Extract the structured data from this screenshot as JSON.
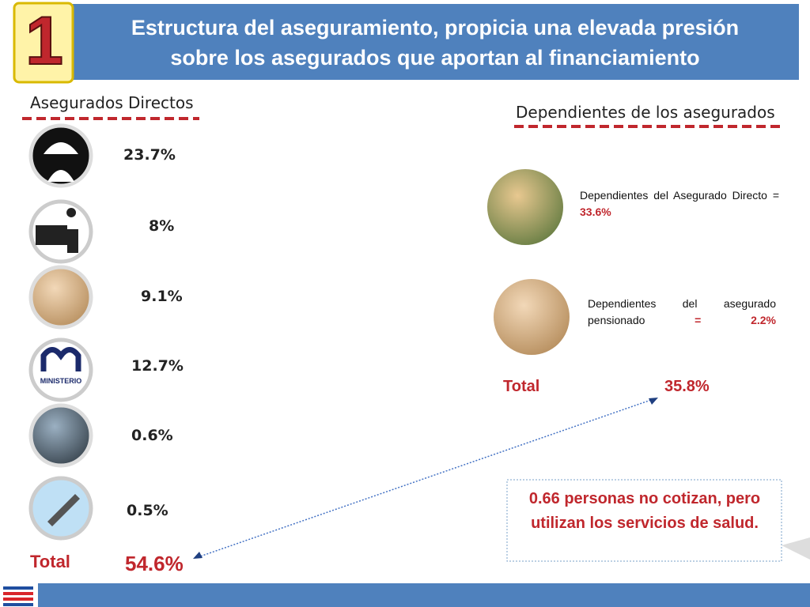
{
  "header": {
    "number": "1",
    "title_lines": [
      "Estructura del aseguramiento, propicia una elevada presión",
      "sobre los asegurados que aportan al financiamiento"
    ]
  },
  "direct": {
    "heading": "Asegurados Directos",
    "items": [
      "23.7%",
      "8%",
      "9.1%",
      "12.7%",
      "0.6%",
      "0.5%"
    ],
    "total_label": "Total",
    "total_value": "54.6%"
  },
  "dependents": {
    "heading": "Dependientes de los asegurados",
    "items": [
      {
        "label": "Dependientes del Asegurado Directo =",
        "value": "33.6%"
      },
      {
        "label": "Dependientes del asegurado pensionado",
        "value": "= 2.2%"
      }
    ],
    "total_label": "Total",
    "total_value": "35.8%"
  },
  "note": "0.66 personas no cotizan, pero utilizan los servicios de salud."
}
